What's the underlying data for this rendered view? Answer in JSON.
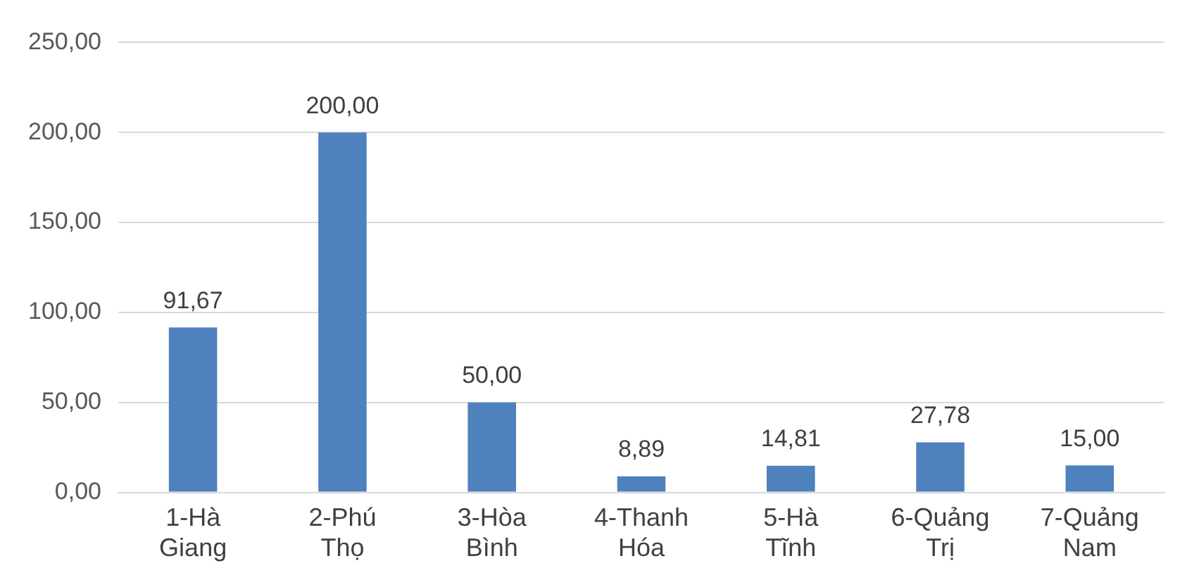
{
  "chart_data": {
    "type": "bar",
    "categories": [
      "1-Hà Giang",
      "2-Phú Thọ",
      "3-Hòa Bình",
      "4-Thanh Hóa",
      "5-Hà Tĩnh",
      "6-Quảng Trị",
      "7-Quảng Nam"
    ],
    "values": [
      91.67,
      200,
      50,
      8.89,
      14.81,
      27.78,
      15
    ],
    "value_labels": [
      "91,67",
      "200,00",
      "50,00",
      "8,89",
      "14,81",
      "27,78",
      "15,00"
    ],
    "color": "#4f81bd",
    "ylim": [
      0,
      250
    ],
    "yticks": [
      {
        "value": 0,
        "label": "0,00"
      },
      {
        "value": 50,
        "label": "50,00"
      },
      {
        "value": 100,
        "label": "100,00"
      },
      {
        "value": 150,
        "label": "150,00"
      },
      {
        "value": 200,
        "label": "200,00"
      },
      {
        "value": 250,
        "label": "250,00"
      }
    ],
    "grid": "y"
  }
}
